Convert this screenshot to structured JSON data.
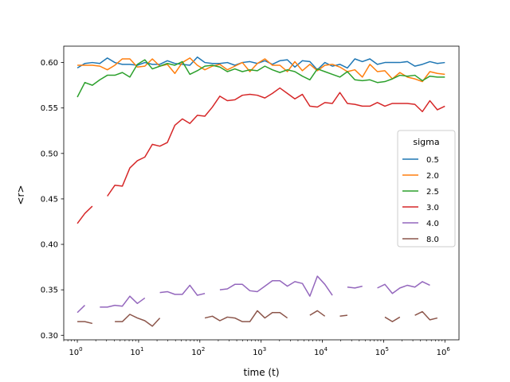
{
  "chart_data": {
    "type": "line",
    "xlabel": "time (t)",
    "ylabel": "<r>",
    "xscale": "log",
    "xlim": [
      0.6,
      1700000
    ],
    "ylim": [
      0.295,
      0.618
    ],
    "xticks": [
      {
        "value": 1,
        "base": "10",
        "exp": "0"
      },
      {
        "value": 10,
        "base": "10",
        "exp": "1"
      },
      {
        "value": 100,
        "base": "10",
        "exp": "2"
      },
      {
        "value": 1000,
        "base": "10",
        "exp": "3"
      },
      {
        "value": 10000,
        "base": "10",
        "exp": "4"
      },
      {
        "value": 100000,
        "base": "10",
        "exp": "5"
      },
      {
        "value": 1000000,
        "base": "10",
        "exp": "6"
      }
    ],
    "yticks": [
      {
        "value": 0.3,
        "label": "0.30"
      },
      {
        "value": 0.35,
        "label": "0.35"
      },
      {
        "value": 0.4,
        "label": "0.40"
      },
      {
        "value": 0.45,
        "label": "0.45"
      },
      {
        "value": 0.5,
        "label": "0.50"
      },
      {
        "value": 0.55,
        "label": "0.55"
      },
      {
        "value": 0.6,
        "label": "0.60"
      }
    ],
    "grid": false,
    "legend": {
      "title": "sigma",
      "placement": "center-right"
    },
    "series": [
      {
        "name": "0.5",
        "color": "#1f77b4",
        "values": [
          0.594,
          0.599,
          0.6,
          0.599,
          0.605,
          0.6,
          0.598,
          0.598,
          0.597,
          0.6,
          0.598,
          0.598,
          0.602,
          0.599,
          0.598,
          0.597,
          0.606,
          0.6,
          0.599,
          0.599,
          0.6,
          0.597,
          0.6,
          0.601,
          0.599,
          0.602,
          0.598,
          0.602,
          0.603,
          0.595,
          0.602,
          0.601,
          0.592,
          0.6,
          0.596,
          0.598,
          0.594,
          0.604,
          0.601,
          0.604,
          0.598,
          0.6,
          0.6,
          0.6,
          0.601,
          0.596,
          0.598,
          0.601,
          0.599,
          0.6
        ]
      },
      {
        "name": "2.0",
        "color": "#ff7f0e",
        "values": [
          0.597,
          0.597,
          0.597,
          0.596,
          0.592,
          0.597,
          0.604,
          0.604,
          0.595,
          0.596,
          0.604,
          0.596,
          0.598,
          0.588,
          0.6,
          0.605,
          0.597,
          0.592,
          0.596,
          0.598,
          0.592,
          0.596,
          0.6,
          0.59,
          0.599,
          0.604,
          0.597,
          0.597,
          0.59,
          0.601,
          0.591,
          0.598,
          0.591,
          0.597,
          0.598,
          0.595,
          0.59,
          0.592,
          0.584,
          0.598,
          0.59,
          0.591,
          0.582,
          0.589,
          0.584,
          0.582,
          0.579,
          0.59,
          0.588,
          0.587
        ]
      },
      {
        "name": "2.5",
        "color": "#2ca02c",
        "values": [
          0.562,
          0.578,
          0.575,
          0.581,
          0.586,
          0.586,
          0.589,
          0.584,
          0.598,
          0.603,
          0.593,
          0.596,
          0.599,
          0.597,
          0.601,
          0.587,
          0.591,
          0.596,
          0.597,
          0.595,
          0.59,
          0.593,
          0.59,
          0.592,
          0.591,
          0.596,
          0.592,
          0.589,
          0.592,
          0.59,
          0.585,
          0.581,
          0.593,
          0.59,
          0.587,
          0.584,
          0.59,
          0.581,
          0.58,
          0.581,
          0.578,
          0.579,
          0.582,
          0.586,
          0.585,
          0.586,
          0.58,
          0.585,
          0.584,
          0.584
        ]
      },
      {
        "name": "3.0",
        "color": "#d62728",
        "values": [
          0.423,
          0.434,
          0.442,
          null,
          0.453,
          0.465,
          0.464,
          0.484,
          0.492,
          0.496,
          0.51,
          0.508,
          0.512,
          0.531,
          0.538,
          0.533,
          0.542,
          0.541,
          0.551,
          0.563,
          0.558,
          0.559,
          0.564,
          0.565,
          0.564,
          0.561,
          0.566,
          0.572,
          0.566,
          0.56,
          0.565,
          0.552,
          0.551,
          0.556,
          0.555,
          0.567,
          0.555,
          0.554,
          0.552,
          0.552,
          0.556,
          0.552,
          0.555,
          0.555,
          0.555,
          0.554,
          0.546,
          0.558,
          0.548,
          0.552
        ]
      },
      {
        "name": "4.0",
        "color": "#9467bd",
        "values": [
          0.325,
          0.333,
          null,
          0.331,
          0.331,
          0.333,
          0.332,
          0.343,
          0.335,
          0.341,
          null,
          0.347,
          0.348,
          0.345,
          0.345,
          0.355,
          0.344,
          0.346,
          null,
          0.35,
          0.351,
          0.356,
          0.356,
          0.349,
          0.348,
          0.354,
          0.36,
          0.36,
          0.354,
          0.359,
          0.357,
          0.343,
          0.365,
          0.356,
          0.344,
          null,
          0.353,
          0.352,
          0.354,
          null,
          0.352,
          0.356,
          0.346,
          0.352,
          0.355,
          0.353,
          0.359,
          0.355,
          null,
          null
        ]
      },
      {
        "name": "8.0",
        "color": "#8c564b",
        "values": [
          0.315,
          0.315,
          0.313,
          null,
          null,
          0.315,
          0.315,
          0.323,
          0.319,
          0.316,
          0.31,
          0.319,
          null,
          null,
          null,
          null,
          null,
          0.319,
          0.321,
          0.316,
          0.32,
          0.319,
          0.315,
          0.315,
          0.327,
          0.319,
          0.325,
          0.325,
          0.319,
          null,
          null,
          0.322,
          0.327,
          0.321,
          null,
          0.321,
          0.322,
          null,
          null,
          null,
          null,
          0.32,
          0.315,
          0.32,
          null,
          0.322,
          0.326,
          0.317,
          0.319,
          null
        ]
      }
    ]
  }
}
